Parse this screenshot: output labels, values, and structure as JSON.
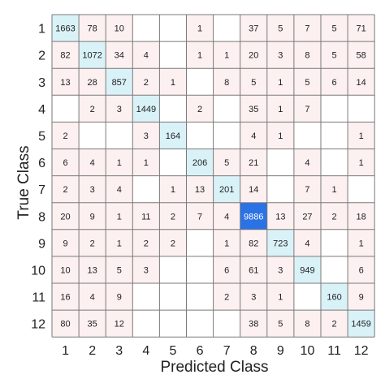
{
  "chart_data": {
    "type": "heatmap",
    "xlabel": "Predicted Class",
    "ylabel": "True Class",
    "x_categories": [
      "1",
      "2",
      "3",
      "4",
      "5",
      "6",
      "7",
      "8",
      "9",
      "10",
      "11",
      "12"
    ],
    "y_categories": [
      "1",
      "2",
      "3",
      "4",
      "5",
      "6",
      "7",
      "8",
      "9",
      "10",
      "11",
      "12"
    ],
    "matrix": [
      [
        1663,
        78,
        10,
        null,
        null,
        1,
        null,
        37,
        5,
        7,
        5,
        71
      ],
      [
        82,
        1072,
        34,
        4,
        null,
        1,
        1,
        20,
        3,
        8,
        5,
        58
      ],
      [
        13,
        28,
        857,
        2,
        1,
        null,
        8,
        5,
        1,
        5,
        6,
        14
      ],
      [
        null,
        2,
        3,
        1449,
        null,
        2,
        null,
        35,
        1,
        7,
        null,
        null
      ],
      [
        2,
        null,
        null,
        3,
        164,
        null,
        null,
        4,
        1,
        null,
        null,
        1
      ],
      [
        6,
        4,
        1,
        1,
        null,
        206,
        5,
        21,
        null,
        4,
        null,
        1
      ],
      [
        2,
        3,
        4,
        null,
        1,
        13,
        201,
        14,
        null,
        7,
        1,
        null
      ],
      [
        20,
        9,
        1,
        11,
        2,
        7,
        4,
        9886,
        13,
        27,
        2,
        18
      ],
      [
        9,
        2,
        1,
        2,
        2,
        null,
        1,
        82,
        723,
        4,
        null,
        1
      ],
      [
        10,
        13,
        5,
        3,
        null,
        null,
        6,
        61,
        3,
        949,
        null,
        6
      ],
      [
        16,
        4,
        9,
        null,
        null,
        null,
        2,
        3,
        1,
        null,
        160,
        9
      ],
      [
        80,
        35,
        12,
        null,
        null,
        null,
        null,
        38,
        5,
        8,
        2,
        1459
      ]
    ],
    "colors": {
      "diagonal": "#d9f2f8",
      "off_diagonal": "#fcf0f0",
      "max_cell": "#2a72e6",
      "max_text": "#ffffff",
      "text": "#222222",
      "grid": "#7a7a7a"
    }
  }
}
